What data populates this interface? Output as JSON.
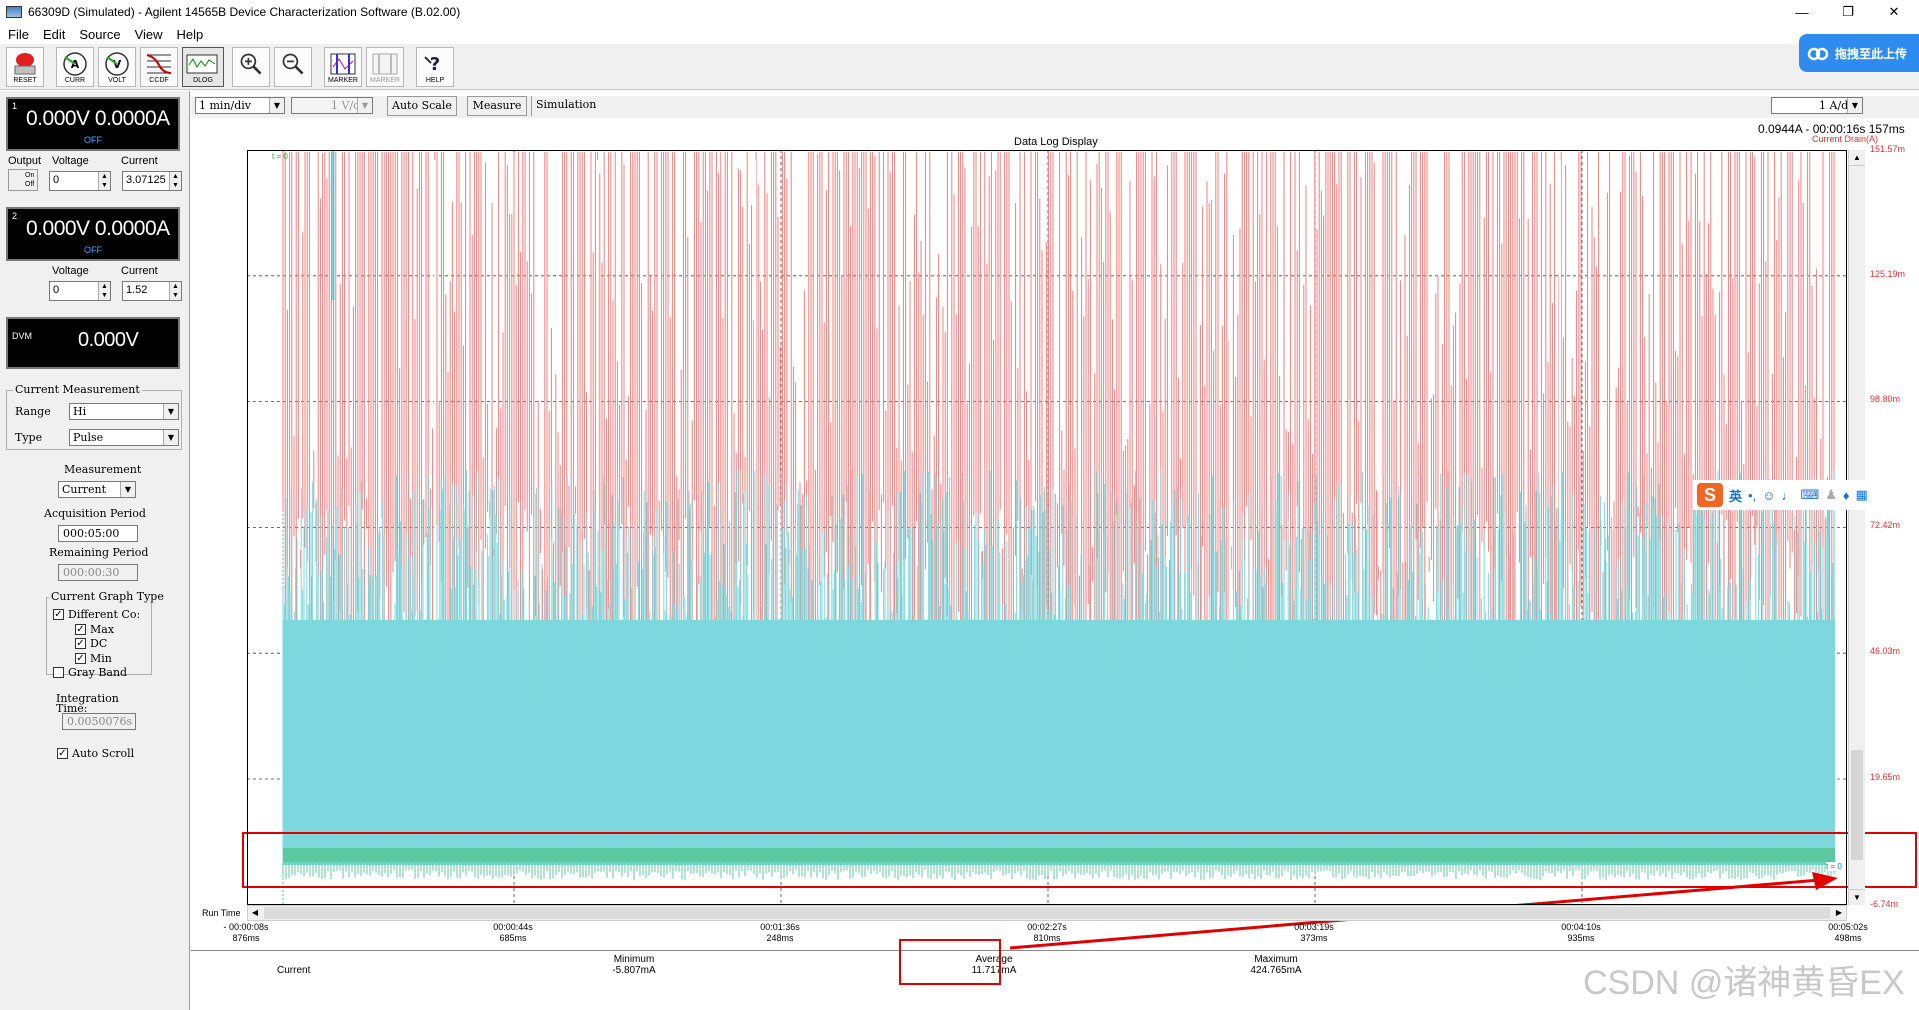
{
  "window": {
    "title": "66309D (Simulated) - Agilent 14565B Device Characterization Software (B.02.00)",
    "controls": [
      "—",
      "❐",
      "✕"
    ]
  },
  "menu": [
    "File",
    "Edit",
    "Source",
    "View",
    "Help"
  ],
  "toolbar": [
    {
      "id": "reset",
      "label": "RESET",
      "icon": "reset-icon"
    },
    {
      "id": "curr",
      "label": "CURR",
      "icon": "ammeter-icon"
    },
    {
      "id": "volt",
      "label": "VOLT",
      "icon": "voltmeter-icon"
    },
    {
      "id": "ccdf",
      "label": "CCDF",
      "icon": "ccdf-icon"
    },
    {
      "id": "dlog",
      "label": "DLOG",
      "icon": "dlog-icon"
    },
    {
      "id": "zoomin",
      "label": "",
      "icon": "zoom-in-icon"
    },
    {
      "id": "zoomout",
      "label": "",
      "icon": "zoom-out-icon"
    },
    {
      "id": "marker1",
      "label": "MARKER",
      "icon": "marker-icon"
    },
    {
      "id": "marker2",
      "label": "MARKER",
      "icon": "marker-disabled-icon"
    },
    {
      "id": "help",
      "label": "HELP",
      "icon": "help-icon"
    }
  ],
  "baidu_overlay": {
    "label": "拖拽至此上传"
  },
  "channel1": {
    "num": "1",
    "reading": "0.000V  0.0000A",
    "state": "OFF",
    "output_label": "Output",
    "on": "On",
    "off": "Off",
    "voltage_label": "Voltage",
    "current_label": "Current",
    "voltage": "0",
    "current": "3.07125"
  },
  "channel2": {
    "num": "2",
    "reading": "0.000V  0.0000A",
    "state": "OFF",
    "voltage_label": "Voltage",
    "current_label": "Current",
    "voltage": "0",
    "current": "1.52"
  },
  "dvm": {
    "label": "DVM",
    "reading": "0.000V"
  },
  "current_measurement": {
    "title": "Current Measurement",
    "range_label": "Range",
    "range": "Hi",
    "type_label": "Type",
    "type": "Pulse"
  },
  "measurement": {
    "title": "Measurement",
    "value": "Current"
  },
  "acquisition": {
    "title": "Acquisition Period",
    "value": "000:05:00"
  },
  "remaining": {
    "title": "Remaining Period",
    "value": "000:00:30"
  },
  "graph_type": {
    "title": "Current Graph Type",
    "different": "Different Co:",
    "max": "Max",
    "dc": "DC",
    "min": "Min",
    "gray": "Gray Band"
  },
  "integration": {
    "title": "Integration Time:",
    "value": "0.0050076s"
  },
  "auto_scroll": "Auto Scroll",
  "graph_toolbar": {
    "time_div": "1 min/div",
    "volt_div": "1 V/di",
    "auto_scale": "Auto Scale",
    "measure": "Measure",
    "simulation": "Simulation",
    "amp_div": "1 A/di"
  },
  "plot": {
    "title": "Data Log Display",
    "readout": "0.0944A - 00:00:16s 157ms",
    "series_label": "Current Drain(A)",
    "t0_label": "t = 0",
    "t1_label": "t = 0",
    "y_ticks": [
      "151.57m",
      "125.19m",
      "98.80m",
      "72.42m",
      "46.03m",
      "19.65m",
      "-6.74m"
    ],
    "run_time_label": "Run Time",
    "x_ticks": [
      [
        "- 00:00:08s",
        "876ms"
      ],
      [
        "00:00:44s",
        "685ms"
      ],
      [
        "00:01:36s",
        "248ms"
      ],
      [
        "00:02:27s",
        "810ms"
      ],
      [
        "00:03:19s",
        "373ms"
      ],
      [
        "00:04:10s",
        "935ms"
      ],
      [
        "00:05:02s",
        "498ms"
      ]
    ],
    "colors": {
      "max": "#f08080",
      "dc": "#7dd8de",
      "min": "#5cc8a0",
      "annotation": "#e00000"
    }
  },
  "status": {
    "current": "Current",
    "min_label": "Minimum",
    "min": "-5.807mA",
    "avg_label": "Average",
    "avg": "11.717mA",
    "max_label": "Maximum",
    "max": "424.765mA"
  },
  "ime": {
    "label": "英"
  },
  "watermark": "CSDN @诸神黄昏EX"
}
